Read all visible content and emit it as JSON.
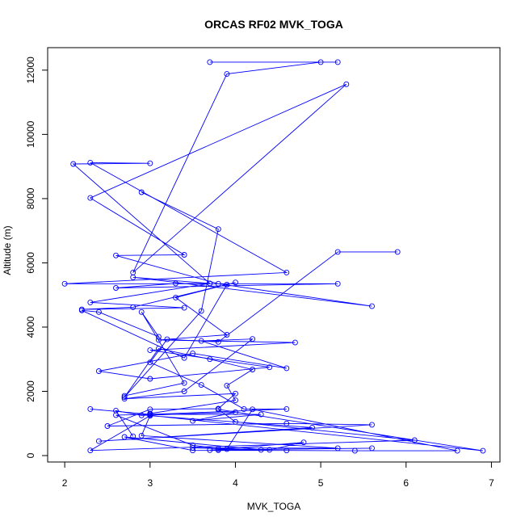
{
  "chart_data": {
    "type": "line",
    "title": "ORCAS RF02 MVK_TOGA",
    "xlabel": "MVK_TOGA",
    "ylabel": "Altitude (m)",
    "xlim": [
      1.8,
      7.1
    ],
    "ylim": [
      -200,
      12700
    ],
    "xticks": [
      2,
      3,
      4,
      5,
      6,
      7
    ],
    "yticks": [
      0,
      2000,
      4000,
      6000,
      8000,
      10000,
      12000
    ],
    "colors": {
      "series": "#0000ff",
      "axis": "#000000",
      "background": "#ffffff"
    },
    "marker": "open-circle",
    "series": [
      {
        "x": [
          3.7,
          5.2,
          5.0,
          3.9,
          2.8,
          5.3,
          2.3,
          3.4,
          2.6,
          3.8,
          5.6,
          2.8,
          3.7,
          2.1,
          3.0,
          2.3,
          4.6,
          2.0,
          5.2,
          2.6,
          3.3,
          3.7,
          2.3,
          3.4,
          2.2,
          2.8,
          4.0,
          3.3,
          3.9,
          3.1,
          4.7,
          3.0,
          4.4,
          3.0,
          2.4,
          3.5,
          4.6,
          3.6,
          4.2,
          3.4,
          2.7,
          4.0,
          3.8,
          3.0,
          2.5,
          4.6,
          5.6,
          2.4,
          4.9,
          3.0,
          2.3,
          6.1,
          4.0,
          3.8,
          6.9,
          3.0,
          2.9,
          5.2,
          3.5,
          4.3,
          2.7,
          3.5,
          4.6,
          5.4,
          6.6,
          4.2,
          3.9,
          3.8,
          4.4,
          4.8,
          3.7,
          5.6,
          3.8
        ],
        "y": [
          12250,
          12250,
          12250,
          11880,
          5700,
          11560,
          8020,
          6250,
          6230,
          5350,
          4650,
          5550,
          5360,
          9080,
          9100,
          9120,
          5700,
          5350,
          5350,
          5220,
          5360,
          5360,
          4770,
          4600,
          4550,
          4620,
          5390,
          4920,
          3760,
          3600,
          3520,
          3280,
          2750,
          2390,
          2630,
          3180,
          2720,
          3570,
          3630,
          2000,
          1770,
          1930,
          1460,
          1440,
          920,
          1000,
          960,
          450,
          870,
          1240,
          160,
          480,
          1050,
          1440,
          150,
          1250,
          620,
          230,
          240,
          180,
          580,
          160,
          160,
          150,
          150,
          1440,
          200,
          170,
          180,
          410,
          170,
          230,
          180
        ]
      },
      {
        "x": [
          2.7,
          3.4,
          2.9,
          3.1,
          2.4,
          2.2,
          3.4,
          3.9
        ],
        "y": [
          1860,
          2260,
          4470,
          3700,
          4470,
          4520,
          3040,
          5320
        ]
      },
      {
        "x": [
          2.9,
          3.8,
          3.6,
          2.7,
          3.1,
          3.7,
          4.2,
          3.9,
          4.0,
          3.0
        ],
        "y": [
          8200,
          7050,
          4500,
          1820,
          3330,
          3000,
          2680,
          2180,
          1720,
          1310
        ]
      },
      {
        "x": [
          5.9,
          5.2,
          3.8,
          3.2,
          3.0,
          3.6,
          4.1,
          4.6,
          3.0,
          2.3
        ],
        "y": [
          6340,
          6340,
          3540,
          3620,
          2900,
          2200,
          1450,
          1450,
          1280,
          1450
        ]
      },
      {
        "x": [
          2.8,
          2.6,
          2.9,
          4.0,
          3.5,
          4.3,
          3.0,
          2.6,
          3.5,
          3.8
        ],
        "y": [
          600,
          1400,
          1250,
          1350,
          1080,
          1280,
          1280,
          1260,
          320,
          220
        ]
      }
    ]
  }
}
